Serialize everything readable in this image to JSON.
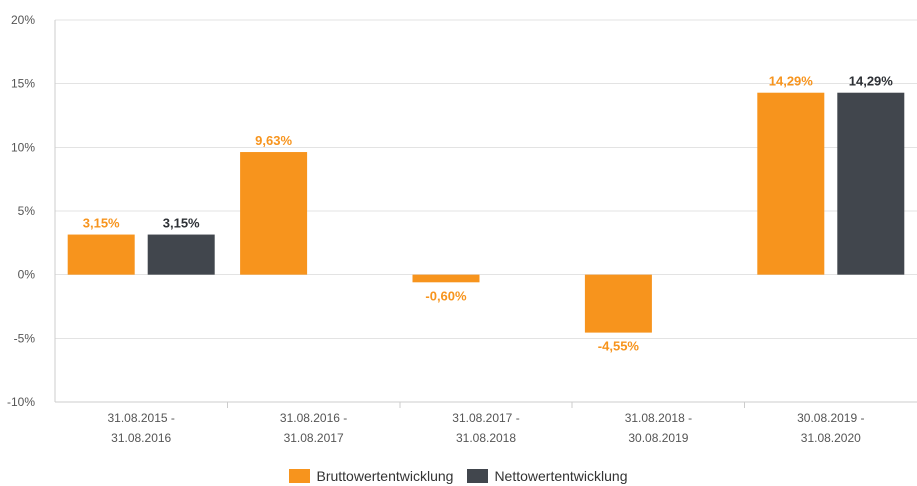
{
  "chart_data": {
    "type": "bar",
    "categories": [
      [
        "31.08.2015 -",
        "31.08.2016"
      ],
      [
        "31.08.2016 -",
        "31.08.2017"
      ],
      [
        "31.08.2017 -",
        "31.08.2018"
      ],
      [
        "31.08.2018 -",
        "30.08.2019"
      ],
      [
        "30.08.2019 -",
        "31.08.2020"
      ]
    ],
    "series": [
      {
        "name": "Bruttowertentwicklung",
        "color": "#f7941d",
        "values": [
          3.15,
          9.63,
          -0.6,
          -4.55,
          14.29
        ],
        "labels": [
          "3,15%",
          "9,63%",
          "-0,60%",
          "-4,55%",
          "14,29%"
        ]
      },
      {
        "name": "Nettowertentwicklung",
        "color": "#41464d",
        "values": [
          3.15,
          null,
          null,
          null,
          14.29
        ],
        "labels": [
          "3,15%",
          "",
          "",
          "",
          "14,29%"
        ]
      }
    ],
    "ylim": [
      -10,
      20
    ],
    "yticks": [
      -10,
      -5,
      0,
      5,
      10,
      15,
      20
    ],
    "ytick_labels": [
      "-10%",
      "-5%",
      "0%",
      "5%",
      "10%",
      "15%",
      "20%"
    ],
    "grid": true,
    "legend": "bottom-center",
    "gridline_color": "#e3e3e3",
    "axis_color": "#cccccc"
  }
}
